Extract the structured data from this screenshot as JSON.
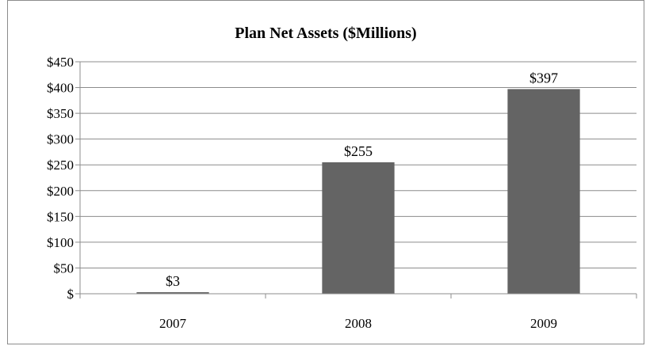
{
  "chart_data": {
    "type": "bar",
    "title": "Plan Net Assets ($Millions)",
    "categories": [
      "2007",
      "2008",
      "2009"
    ],
    "values": [
      3,
      255,
      397
    ],
    "data_labels": [
      "$3",
      "$255",
      "$397"
    ],
    "ylim": [
      0,
      450
    ],
    "y_ticks": [
      0,
      50,
      100,
      150,
      200,
      250,
      300,
      350,
      400,
      450
    ],
    "y_tick_labels": [
      "$",
      "$50",
      "$100",
      "$150",
      "$200",
      "$250",
      "$300",
      "$350",
      "$400",
      "$450"
    ],
    "xlabel": "",
    "ylabel": "",
    "grid": true,
    "legend": "none",
    "colors": {
      "bar": "#646464",
      "grid": "#8c8c8c",
      "axis": "#8c8c8c",
      "frame": "#8c8c8c"
    }
  }
}
